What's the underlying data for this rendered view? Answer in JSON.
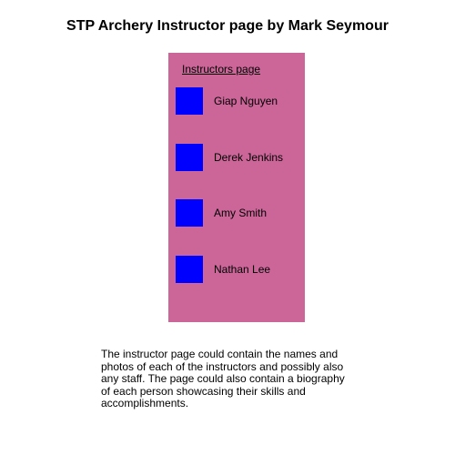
{
  "page": {
    "title": "STP Archery Instructor page by Mark Seymour"
  },
  "panel": {
    "background_color": "#cc6699",
    "heading": "Instructors page",
    "photo_color": "#0000ff",
    "instructors": [
      {
        "name": "Giap Nguyen"
      },
      {
        "name": "Derek Jenkins"
      },
      {
        "name": "Amy Smith"
      },
      {
        "name": "Nathan Lee"
      }
    ]
  },
  "description": {
    "text": "The instructor page could contain the names and photos of each of the instructors and possibly also any staff. The page could also contain a biography of each person showcasing their skills and accomplishments."
  }
}
